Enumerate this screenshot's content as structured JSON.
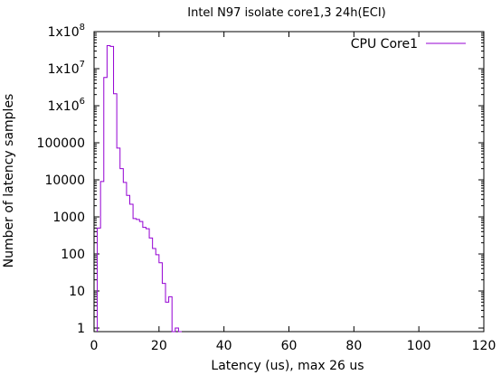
{
  "chart_data": {
    "type": "line",
    "title": "Intel N97 isolate core1,3 24h(ECI)",
    "xlabel": "Latency (us), max 26 us",
    "ylabel": "Number of latency samples",
    "x_ticks": [
      "0",
      "20",
      "40",
      "60",
      "80",
      "100",
      "120"
    ],
    "y_ticks": [
      {
        "base": "1x10",
        "exp": "8",
        "value": 100000000
      },
      {
        "base": "1x10",
        "exp": "7",
        "value": 10000000
      },
      {
        "base": "1x10",
        "exp": "6",
        "value": 1000000
      },
      {
        "base": "100000",
        "exp": "",
        "value": 100000
      },
      {
        "base": "10000",
        "exp": "",
        "value": 10000
      },
      {
        "base": "1000",
        "exp": "",
        "value": 1000
      },
      {
        "base": "100",
        "exp": "",
        "value": 100
      },
      {
        "base": "10",
        "exp": "",
        "value": 10
      },
      {
        "base": "1",
        "exp": "",
        "value": 1
      }
    ],
    "xlim": [
      0,
      120
    ],
    "ylim": [
      0.8,
      100000000
    ],
    "y_scale": "log",
    "grid": false,
    "legend_position": "top-right",
    "series": [
      {
        "name": "CPU Core1",
        "color": "#9400d3",
        "style": "steps",
        "points": [
          [
            1,
            500
          ],
          [
            2,
            9000
          ],
          [
            3,
            5800000
          ],
          [
            4,
            42000000
          ],
          [
            5,
            40000000
          ],
          [
            6,
            2100000
          ],
          [
            7,
            72000
          ],
          [
            8,
            20000
          ],
          [
            9,
            8500
          ],
          [
            10,
            3800
          ],
          [
            11,
            2200
          ],
          [
            12,
            900
          ],
          [
            13,
            850
          ],
          [
            14,
            750
          ],
          [
            15,
            520
          ],
          [
            16,
            480
          ],
          [
            17,
            270
          ],
          [
            18,
            140
          ],
          [
            19,
            95
          ],
          [
            20,
            58
          ],
          [
            21,
            16
          ],
          [
            22,
            5
          ],
          [
            23,
            7
          ],
          [
            24,
            0.8
          ],
          [
            25,
            1
          ],
          [
            26,
            0.8
          ]
        ]
      }
    ]
  }
}
